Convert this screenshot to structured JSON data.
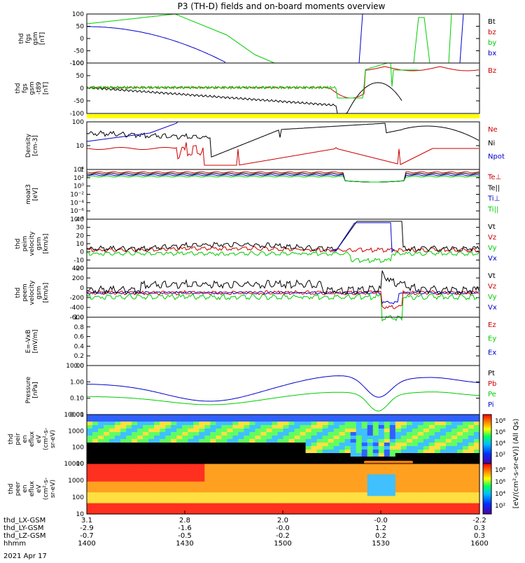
{
  "title": "P3 (TH-D) fields and on-board moments overview",
  "date": "2021 Apr 17",
  "colors": {
    "black": "#000000",
    "red": "#cc0000",
    "green": "#00cc00",
    "blue": "#0000cc",
    "yellow": "#ffff00"
  },
  "chart_data": [
    {
      "type": "line",
      "ylabels": [
        "thd",
        "fgs",
        "gsm",
        "[nT]"
      ],
      "yticks": [
        "100",
        "50",
        "0",
        "-50",
        "-100"
      ],
      "ylim": [
        -100,
        100
      ],
      "legend": [
        {
          "label": "Bt",
          "color": "black"
        },
        {
          "label": "bz",
          "color": "red"
        },
        {
          "label": "by",
          "color": "green"
        },
        {
          "label": "bx",
          "color": "blue"
        }
      ]
    },
    {
      "type": "line",
      "ylabels": [
        "thd",
        "fgs",
        "gsm",
        "-t89",
        "[nT]"
      ],
      "yticks": [
        "100",
        "50",
        "0",
        "-50",
        "-100"
      ],
      "ylim": [
        -120,
        120
      ],
      "legend": [
        {
          "label": "Bz",
          "color": "red"
        }
      ]
    },
    {
      "type": "line",
      "ylabels": [
        "Density",
        "[cm-3]"
      ],
      "yticks": [
        "100",
        "10",
        "1"
      ],
      "log": true,
      "legend": [
        {
          "label": "Ne",
          "color": "red"
        },
        {
          "label": "Ni",
          "color": "black"
        },
        {
          "label": "Npot",
          "color": "blue"
        }
      ]
    },
    {
      "type": "line",
      "ylabels": [
        "moat3",
        "[eV]"
      ],
      "yticks": [
        "10⁴",
        "10²",
        "10⁰",
        "10⁻²",
        "10⁻⁴",
        "10⁻⁶",
        "10⁻⁸"
      ],
      "log": true,
      "legend": [
        {
          "label": "Te⊥",
          "color": "red"
        },
        {
          "label": "Te||",
          "color": "black"
        },
        {
          "label": "Ti⊥",
          "color": "blue"
        },
        {
          "label": "Ti||",
          "color": "green"
        }
      ]
    },
    {
      "type": "line",
      "ylabels": [
        "thd",
        "peim",
        "velocity",
        "gsm",
        "[km/s]"
      ],
      "yticks": [
        "40",
        "30",
        "20",
        "10",
        "0",
        "-10",
        "-20"
      ],
      "ylim": [
        -20,
        40
      ],
      "legend": [
        {
          "label": "Vt",
          "color": "black"
        },
        {
          "label": "Vz",
          "color": "red"
        },
        {
          "label": "Vy",
          "color": "green"
        },
        {
          "label": "Vx",
          "color": "blue"
        }
      ]
    },
    {
      "type": "line",
      "ylabels": [
        "thd",
        "peem",
        "velocity",
        "gsm",
        "[km/s]"
      ],
      "yticks": [
        "400",
        "200",
        "0",
        "-200",
        "-400",
        "-600"
      ],
      "ylim": [
        -600,
        400
      ],
      "legend": [
        {
          "label": "Vt",
          "color": "black"
        },
        {
          "label": "Vz",
          "color": "red"
        },
        {
          "label": "Vy",
          "color": "green"
        },
        {
          "label": "Vx",
          "color": "blue"
        }
      ]
    },
    {
      "type": "line",
      "ylabels": [
        "E=-VxB",
        "[mV/m]"
      ],
      "yticks": [
        "1.0",
        "0.8",
        "0.6",
        "0.4",
        "0.2",
        "0.0"
      ],
      "ylim": [
        0,
        1
      ],
      "legend": [
        {
          "label": "Ez",
          "color": "red"
        },
        {
          "label": "Ey",
          "color": "green"
        },
        {
          "label": "Ex",
          "color": "blue"
        }
      ]
    },
    {
      "type": "line",
      "ylabels": [
        "Pressure",
        "[nPa]"
      ],
      "yticks": [
        "10.00",
        "1.00",
        "0.10",
        "0.01"
      ],
      "log": true,
      "legend": [
        {
          "label": "Pt",
          "color": "black"
        },
        {
          "label": "Pb",
          "color": "red"
        },
        {
          "label": "Pe",
          "color": "green"
        },
        {
          "label": "Pi",
          "color": "blue"
        }
      ]
    },
    {
      "type": "heatmap",
      "ylabels": [
        "thd",
        "peir",
        "en",
        "eflux",
        "eV",
        "(cm²-s-",
        "sr-eV)"
      ],
      "yticks": [
        "10000",
        "1000",
        "100",
        "10"
      ]
    },
    {
      "type": "heatmap",
      "ylabels": [
        "thd",
        "peer",
        "en",
        "eflux",
        "eV",
        "(cm²-s-",
        "sr-eV)"
      ],
      "yticks": [
        "10000",
        "1000",
        "100",
        "10"
      ]
    }
  ],
  "colorbar": {
    "label": "[eV/(cm²-s-sr-eV)] (All Qs)",
    "ticks_top": [
      "10⁸",
      "10⁶",
      "10⁴",
      "10²"
    ],
    "ticks_bottom": [
      "10⁸",
      "10⁶",
      "10⁴",
      "10²"
    ]
  },
  "xaxis": {
    "rows": [
      {
        "label": "thd_LX-GSM",
        "values": [
          "3.1",
          "2.8",
          "2.0",
          "-0.0",
          "-2.2"
        ]
      },
      {
        "label": "thd_LY-GSM",
        "values": [
          "-2.9",
          "-1.6",
          "-0.0",
          "1.2",
          "0.3"
        ]
      },
      {
        "label": "thd_LZ-GSM",
        "values": [
          "-0.7",
          "-0.5",
          "-0.2",
          "0.2",
          "0.3"
        ]
      },
      {
        "label": "hhmm",
        "values": [
          "1400",
          "1430",
          "1500",
          "1530",
          "1600"
        ]
      }
    ]
  }
}
